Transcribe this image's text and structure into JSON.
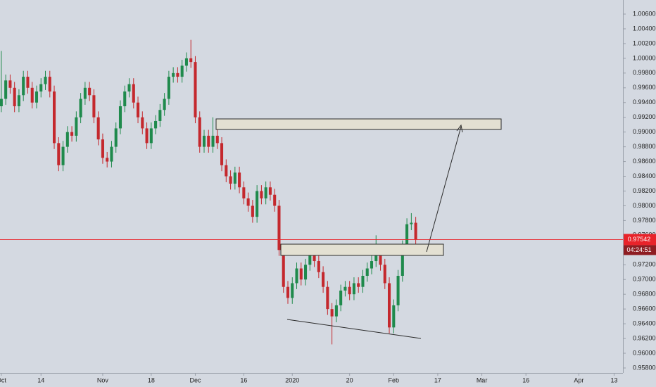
{
  "chart_data": {
    "type": "candlestick",
    "x": [
      0,
      1,
      2,
      3,
      4,
      5,
      6,
      7,
      8,
      9,
      10,
      11,
      12,
      13,
      14,
      15,
      16,
      17,
      18,
      19,
      20,
      21,
      22,
      23,
      24,
      25,
      26,
      27,
      28,
      29,
      30,
      31,
      32,
      33,
      34,
      35,
      36,
      37,
      38,
      39,
      40,
      41,
      42,
      43,
      44,
      45,
      46,
      47,
      48,
      49,
      50,
      51,
      52,
      53,
      54,
      55,
      56,
      57,
      58,
      59,
      60,
      61,
      62,
      63,
      64,
      65,
      66,
      67,
      68,
      69,
      70,
      71,
      72,
      73,
      74,
      75,
      76,
      77,
      78,
      79,
      80,
      81,
      82,
      83,
      84,
      85,
      86,
      87,
      88,
      89,
      90,
      91,
      92,
      93,
      94
    ],
    "open": [
      0.9935,
      0.9945,
      0.997,
      0.996,
      0.9935,
      0.995,
      0.9975,
      0.996,
      0.994,
      0.9955,
      0.9965,
      0.9975,
      0.9955,
      0.9885,
      0.9855,
      0.988,
      0.99,
      0.9895,
      0.992,
      0.9945,
      0.996,
      0.995,
      0.992,
      0.989,
      0.9865,
      0.986,
      0.988,
      0.9905,
      0.9935,
      0.9955,
      0.9965,
      0.994,
      0.992,
      0.9905,
      0.9885,
      0.9905,
      0.9915,
      0.993,
      0.9945,
      0.9975,
      0.998,
      0.9975,
      0.999,
      1.0,
      0.9995,
      0.992,
      0.988,
      0.9895,
      0.988,
      0.9895,
      0.9885,
      0.9855,
      0.984,
      0.983,
      0.9845,
      0.9825,
      0.981,
      0.98,
      0.9785,
      0.982,
      0.981,
      0.9825,
      0.9815,
      0.98,
      0.974,
      0.969,
      0.9675,
      0.9695,
      0.9715,
      0.97,
      0.972,
      0.9735,
      0.9725,
      0.971,
      0.969,
      0.966,
      0.965,
      0.9665,
      0.9685,
      0.969,
      0.968,
      0.9695,
      0.969,
      0.9705,
      0.9715,
      0.9725,
      0.974,
      0.972,
      0.9695,
      0.9635,
      0.9665,
      0.9705,
      0.9745,
      0.9775,
      0.9777
    ],
    "high": [
      1.001,
      0.9978,
      0.9978,
      0.9968,
      0.9958,
      0.9983,
      0.9983,
      0.9968,
      0.9963,
      0.9973,
      0.9983,
      0.9983,
      0.9963,
      0.9893,
      0.9888,
      0.9908,
      0.9908,
      0.9928,
      0.9953,
      0.9968,
      0.9968,
      0.9958,
      0.9928,
      0.9898,
      0.9873,
      0.9888,
      0.9913,
      0.9943,
      0.9963,
      0.9973,
      0.9973,
      0.9948,
      0.9928,
      0.9913,
      0.9913,
      0.9923,
      0.9938,
      0.9953,
      0.9983,
      0.9988,
      0.9988,
      0.9998,
      1.0008,
      1.0025,
      1.0003,
      0.9928,
      0.9903,
      0.9903,
      0.992,
      0.9903,
      0.9893,
      0.9863,
      0.9848,
      0.9853,
      0.9853,
      0.9833,
      0.9818,
      0.9808,
      0.9828,
      0.9828,
      0.9833,
      0.9833,
      0.9823,
      0.9808,
      0.9748,
      0.9698,
      0.9703,
      0.9723,
      0.9723,
      0.9728,
      0.9743,
      0.9743,
      0.9733,
      0.9718,
      0.9698,
      0.9668,
      0.9673,
      0.9693,
      0.9698,
      0.9698,
      0.9703,
      0.9703,
      0.9713,
      0.9723,
      0.9733,
      0.976,
      0.9748,
      0.9728,
      0.9703,
      0.9673,
      0.9713,
      0.9753,
      0.9783,
      0.979,
      0.9785
    ],
    "low": [
      0.9927,
      0.9937,
      0.9952,
      0.9927,
      0.9927,
      0.9942,
      0.9952,
      0.9932,
      0.9932,
      0.9947,
      0.9957,
      0.9947,
      0.9877,
      0.9847,
      0.9847,
      0.9872,
      0.9887,
      0.9887,
      0.9912,
      0.9937,
      0.9942,
      0.9912,
      0.9882,
      0.9857,
      0.9852,
      0.9852,
      0.9872,
      0.9897,
      0.9927,
      0.9947,
      0.9932,
      0.9912,
      0.9897,
      0.9877,
      0.9877,
      0.9897,
      0.9907,
      0.9922,
      0.9937,
      0.9967,
      0.9967,
      0.9967,
      0.9982,
      0.9987,
      0.9912,
      0.9872,
      0.9872,
      0.9872,
      0.9872,
      0.9877,
      0.9847,
      0.9832,
      0.9822,
      0.9822,
      0.9817,
      0.9802,
      0.9792,
      0.9777,
      0.9777,
      0.9802,
      0.9802,
      0.9807,
      0.9792,
      0.9732,
      0.9682,
      0.9667,
      0.9667,
      0.9687,
      0.9692,
      0.9692,
      0.9712,
      0.9717,
      0.9702,
      0.9682,
      0.9652,
      0.9612,
      0.9642,
      0.9657,
      0.9677,
      0.9672,
      0.9672,
      0.9682,
      0.9682,
      0.9697,
      0.9707,
      0.9717,
      0.9712,
      0.9687,
      0.9627,
      0.9627,
      0.9657,
      0.9697,
      0.9737,
      0.9767,
      0.9746
    ],
    "close": [
      0.9945,
      0.997,
      0.996,
      0.9935,
      0.995,
      0.9975,
      0.996,
      0.994,
      0.9955,
      0.9965,
      0.9975,
      0.9955,
      0.9885,
      0.9855,
      0.988,
      0.99,
      0.9895,
      0.992,
      0.9945,
      0.996,
      0.995,
      0.992,
      0.989,
      0.9865,
      0.986,
      0.988,
      0.9905,
      0.9935,
      0.9955,
      0.9965,
      0.994,
      0.992,
      0.9905,
      0.9885,
      0.9905,
      0.9915,
      0.993,
      0.9945,
      0.9975,
      0.998,
      0.9975,
      0.999,
      1.0,
      0.9995,
      0.992,
      0.988,
      0.9895,
      0.988,
      0.9895,
      0.9885,
      0.9855,
      0.984,
      0.983,
      0.9845,
      0.9825,
      0.981,
      0.98,
      0.9785,
      0.982,
      0.981,
      0.9825,
      0.9815,
      0.98,
      0.974,
      0.969,
      0.9675,
      0.9695,
      0.9715,
      0.97,
      0.972,
      0.9735,
      0.9725,
      0.971,
      0.969,
      0.966,
      0.965,
      0.9665,
      0.9685,
      0.969,
      0.968,
      0.9695,
      0.969,
      0.9705,
      0.9715,
      0.9725,
      0.974,
      0.972,
      0.9695,
      0.9635,
      0.9665,
      0.9705,
      0.9745,
      0.9775,
      0.9777,
      0.9754
    ],
    "up_color": "#1f8a4c",
    "down_color": "#c4282d",
    "xlim": [
      -0.3,
      141
    ],
    "xticks": [
      {
        "value": 0,
        "label": "Oct"
      },
      {
        "value": 9,
        "label": "14"
      },
      {
        "value": 23,
        "label": "Nov"
      },
      {
        "value": 34,
        "label": "18"
      },
      {
        "value": 44,
        "label": "Dec"
      },
      {
        "value": 55,
        "label": "16"
      },
      {
        "value": 66,
        "label": "2020"
      },
      {
        "value": 79,
        "label": "20"
      },
      {
        "value": 89,
        "label": "Feb"
      },
      {
        "value": 99,
        "label": "17"
      },
      {
        "value": 109,
        "label": "Mar"
      },
      {
        "value": 119,
        "label": "16"
      },
      {
        "value": 131,
        "label": "Apr"
      },
      {
        "value": 139,
        "label": "13"
      }
    ],
    "ylim": [
      0.95733,
      1.00791
    ],
    "yticks": [
      {
        "value": 1.006,
        "label": "1.00600"
      },
      {
        "value": 1.004,
        "label": "1.00400"
      },
      {
        "value": 1.002,
        "label": "1.00200"
      },
      {
        "value": 1.0,
        "label": "1.00000"
      },
      {
        "value": 0.998,
        "label": "0.99800"
      },
      {
        "value": 0.996,
        "label": "0.99600"
      },
      {
        "value": 0.994,
        "label": "0.99400"
      },
      {
        "value": 0.992,
        "label": "0.99200"
      },
      {
        "value": 0.99,
        "label": "0.99000"
      },
      {
        "value": 0.988,
        "label": "0.98800"
      },
      {
        "value": 0.986,
        "label": "0.98600"
      },
      {
        "value": 0.984,
        "label": "0.98400"
      },
      {
        "value": 0.982,
        "label": "0.98200"
      },
      {
        "value": 0.98,
        "label": "0.98000"
      },
      {
        "value": 0.978,
        "label": "0.97800"
      },
      {
        "value": 0.976,
        "label": "0.97600"
      },
      {
        "value": 0.974,
        "label": "0.97400"
      },
      {
        "value": 0.972,
        "label": "0.97200"
      },
      {
        "value": 0.97,
        "label": "0.97000"
      },
      {
        "value": 0.968,
        "label": "0.96800"
      },
      {
        "value": 0.966,
        "label": "0.96600"
      },
      {
        "value": 0.964,
        "label": "0.96400"
      },
      {
        "value": 0.962,
        "label": "0.96200"
      },
      {
        "value": 0.96,
        "label": "0.96000"
      },
      {
        "value": 0.958,
        "label": "0.95800"
      }
    ],
    "last_price": 0.97542,
    "last_price_color": "#e8232a",
    "countdown": "04:24:51"
  }
}
